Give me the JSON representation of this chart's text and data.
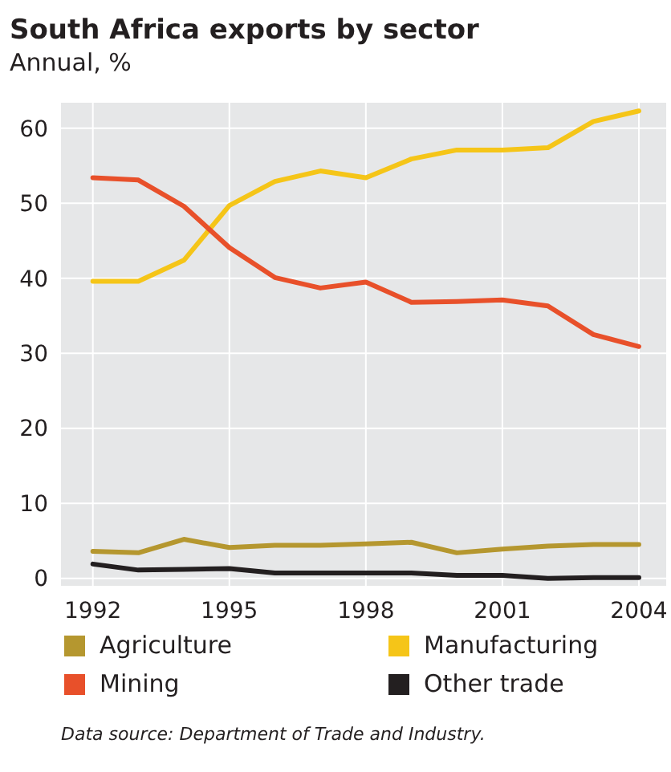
{
  "chart_data": {
    "type": "line",
    "title": "South Africa exports by sector",
    "subtitle": "Annual, %",
    "x": [
      1992,
      1993,
      1994,
      1995,
      1996,
      1997,
      1998,
      1999,
      2000,
      2001,
      2002,
      2003,
      2004
    ],
    "series": [
      {
        "name": "Agriculture",
        "color": "#b5972f",
        "values": [
          3.6,
          3.4,
          5.2,
          4.1,
          4.4,
          4.4,
          4.6,
          4.8,
          3.4,
          3.9,
          4.3,
          4.5,
          4.5
        ]
      },
      {
        "name": "Manufacturing",
        "color": "#f5c518",
        "values": [
          39.6,
          39.6,
          42.4,
          49.7,
          52.9,
          54.3,
          53.4,
          55.9,
          57.1,
          57.1,
          57.4,
          60.9,
          62.3
        ]
      },
      {
        "name": "Mining",
        "color": "#e8502a",
        "values": [
          53.4,
          53.1,
          49.6,
          44.1,
          40.1,
          38.7,
          39.5,
          36.8,
          36.9,
          37.1,
          36.3,
          32.5,
          30.9
        ]
      },
      {
        "name": "Other trade",
        "color": "#231f20",
        "values": [
          1.9,
          1.1,
          1.2,
          1.3,
          0.7,
          0.7,
          0.7,
          0.7,
          0.4,
          0.4,
          0,
          0.1,
          0.1
        ]
      }
    ],
    "xlim": [
      1991.3,
      2004.6
    ],
    "xticks": [
      1992,
      1995,
      1998,
      2001,
      2004
    ],
    "ylim": [
      -1,
      63.4
    ],
    "yticks": [
      0,
      10,
      20,
      30,
      40,
      50,
      60
    ],
    "grid": true,
    "legend": "bottom",
    "marker": "none",
    "line_style": "solid",
    "annotations": [
      "Data source: Department of Trade and Industry."
    ]
  }
}
